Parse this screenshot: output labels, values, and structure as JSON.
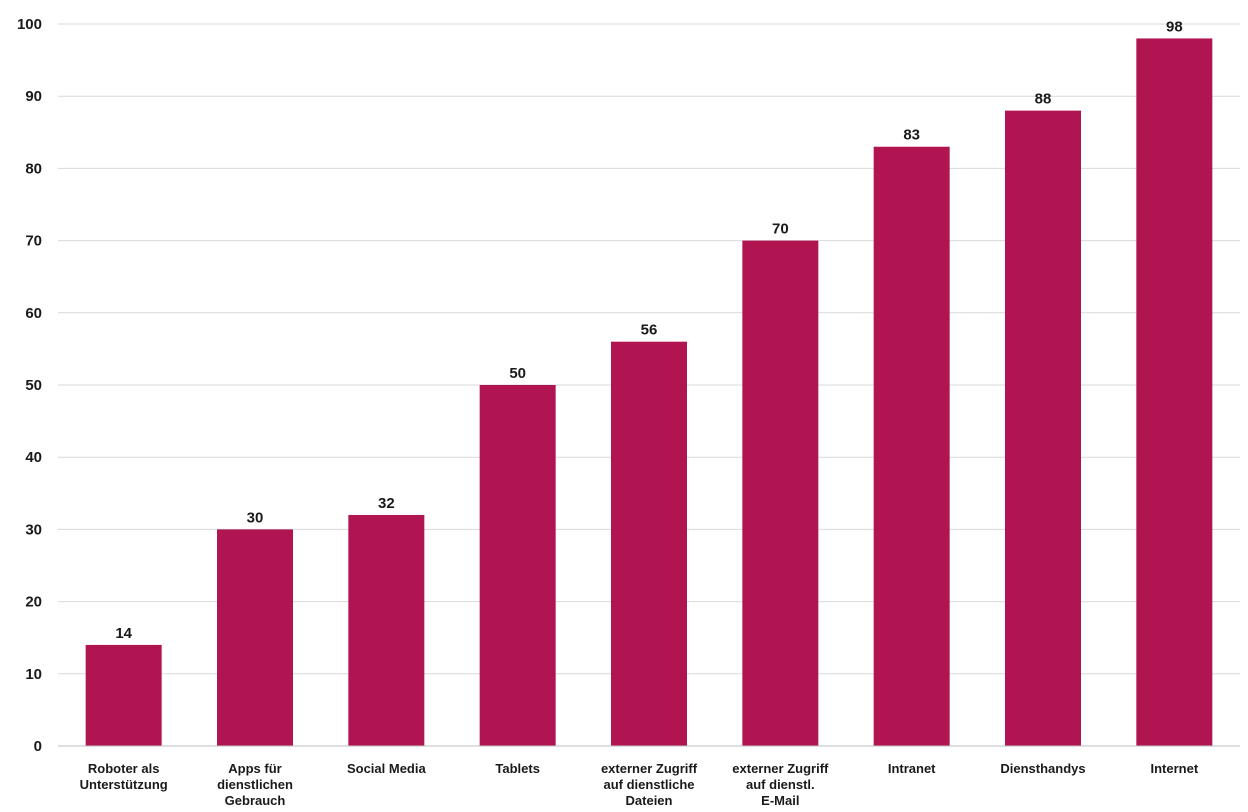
{
  "chart_data": {
    "type": "bar",
    "categories": [
      [
        "Roboter als",
        "Unterstützung"
      ],
      [
        "Apps für",
        "dienstlichen",
        "Gebrauch"
      ],
      [
        "Social Media"
      ],
      [
        "Tablets"
      ],
      [
        "externer Zugriff",
        "auf dienstliche",
        "Dateien"
      ],
      [
        "externer Zugriff",
        "auf dienstl.",
        "E-Mail"
      ],
      [
        "Intranet"
      ],
      [
        "Diensthandys"
      ],
      [
        "Internet"
      ]
    ],
    "values": [
      14,
      30,
      32,
      50,
      56,
      70,
      83,
      88,
      98
    ],
    "data_labels": [
      "14",
      "30",
      "32",
      "50",
      "56",
      "70",
      "83",
      "88",
      "98"
    ],
    "yticks": [
      0,
      10,
      20,
      30,
      40,
      50,
      60,
      70,
      80,
      90,
      100
    ],
    "ylim": [
      0,
      100
    ],
    "grid": true,
    "bar_color": "#b01552"
  }
}
